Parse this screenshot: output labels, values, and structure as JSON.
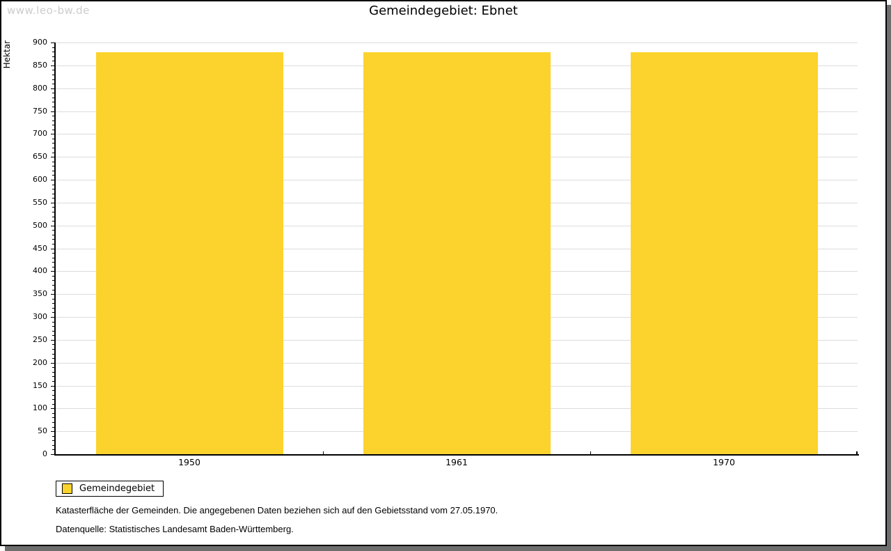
{
  "watermark": "www.leo-bw.de",
  "chart_data": {
    "type": "bar",
    "title": "Gemeindegebiet: Ebnet",
    "categories": [
      "1950",
      "1961",
      "1970"
    ],
    "series": [
      {
        "name": "Gemeindegebiet",
        "color": "#FCD32C",
        "values": [
          878,
          878,
          878
        ]
      }
    ],
    "xlabel": "",
    "ylabel": "Hektar",
    "ylim": [
      0,
      900
    ],
    "ytick_step": 50,
    "ytick_minor_step": 10,
    "grid": true,
    "legend_position": "bottom-left"
  },
  "legend": {
    "items": [
      {
        "label": "Gemeindegebiet",
        "color": "#FCD32C"
      }
    ]
  },
  "footnotes": [
    "Katasterfläche der Gemeinden. Die angegebenen Daten beziehen sich auf den Gebietsstand vom 27.05.1970.",
    "Datenquelle: Statistisches Landesamt Baden-Württemberg."
  ],
  "colors": {
    "bar": "#FCD32C",
    "grid": "#DCDCDC",
    "axis": "#000000",
    "text": "#000000",
    "watermark": "#CCCCCC",
    "frame_shadow": "#6E6E6E"
  }
}
